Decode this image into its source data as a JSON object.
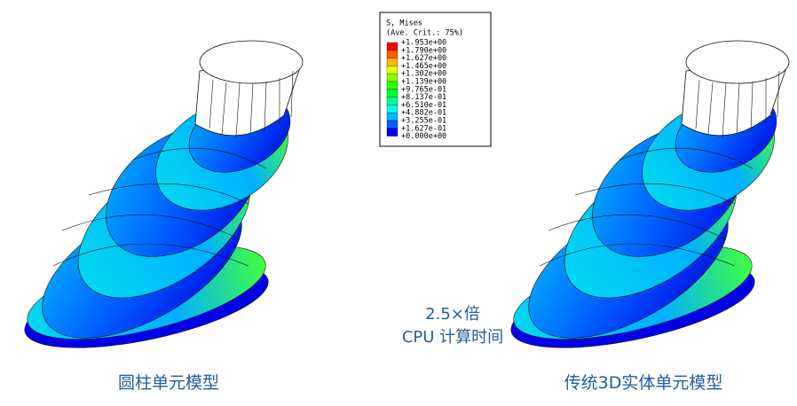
{
  "legend": {
    "title": "S, Mises",
    "subtitle": "(Ave. Crit.: 75%)",
    "levels": [
      "+1.953e+00",
      "+1.790e+00",
      "+1.627e+00",
      "+1.465e+00",
      "+1.302e+00",
      "+1.139e+00",
      "+9.765e-01",
      "+8.137e-01",
      "+6.510e-01",
      "+4.882e-01",
      "+3.255e-01",
      "+1.627e-01",
      "+0.000e+00"
    ],
    "colors": [
      "#ff0000",
      "#ff5d00",
      "#ffb900",
      "#e8ff00",
      "#8bff00",
      "#2eff00",
      "#00ff2e",
      "#00ff8b",
      "#00ffe8",
      "#00b9ff",
      "#005dff",
      "#0000ff"
    ]
  },
  "middle_note": {
    "line1": "2.5×倍",
    "line2": "CPU 计算时间"
  },
  "captions": {
    "left": "圆柱单元模型",
    "right": "传统3D实体单元模型"
  }
}
